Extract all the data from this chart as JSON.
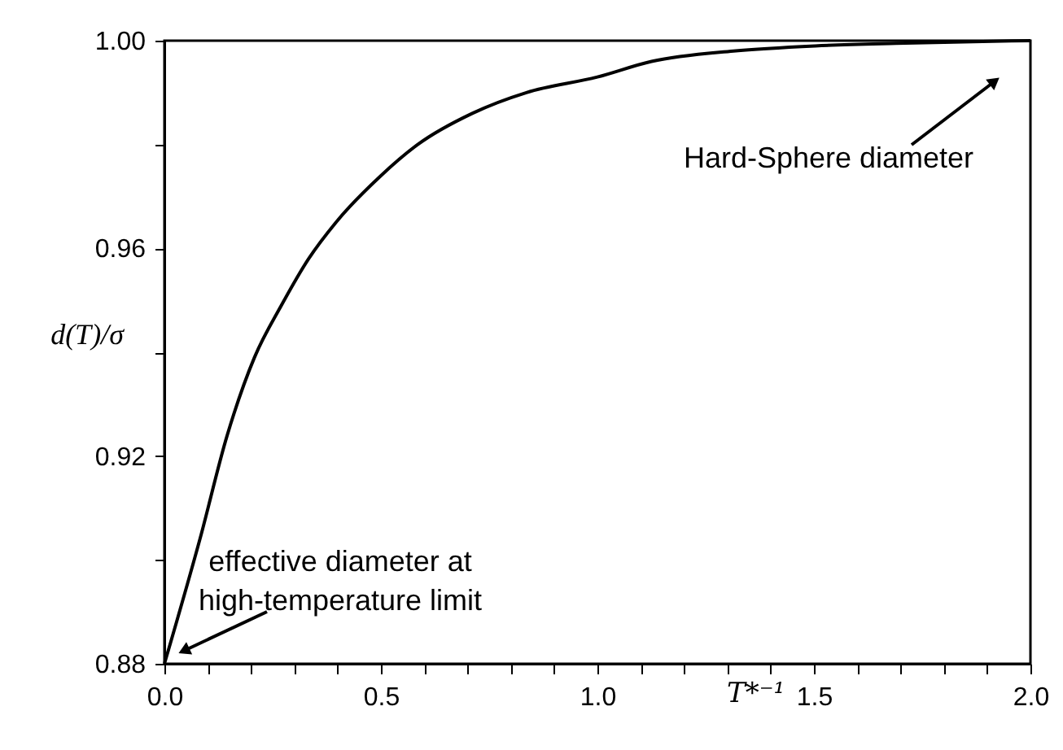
{
  "chart_data": {
    "type": "line",
    "xlabel": "T*⁻¹",
    "ylabel": "d(T)/σ",
    "x": [
      0,
      0.082,
      0.145,
      0.208,
      0.27,
      0.333,
      0.396,
      0.5,
      0.585,
      0.711,
      0.836,
      1.0,
      1.125,
      1.314,
      1.503,
      1.69,
      2.0
    ],
    "series": [
      {
        "color": "#000000",
        "values": [
          0.88,
          0.904,
          0.924,
          0.939,
          0.949,
          0.958,
          0.965,
          0.974,
          0.98,
          0.986,
          0.99,
          0.993,
          0.996,
          0.998,
          0.999,
          0.9995,
          1.0
        ]
      }
    ],
    "xlim": [
      0,
      2.0
    ],
    "xticks": [
      {
        "value": 0,
        "label": "0.0"
      },
      {
        "value": 0.1,
        "label": null
      },
      {
        "value": 0.2,
        "label": null
      },
      {
        "value": 0.3,
        "label": null
      },
      {
        "value": 0.4,
        "label": null
      },
      0.5,
      {
        "value": 0.6,
        "label": null
      },
      {
        "value": 0.7,
        "label": null
      },
      {
        "value": 0.8,
        "label": null
      },
      {
        "value": 0.9,
        "label": null
      },
      {
        "value": 1.0,
        "label": "1.0"
      },
      {
        "value": 1.1,
        "label": null
      },
      {
        "value": 1.2,
        "label": null
      },
      {
        "value": 1.3,
        "label": null
      },
      {
        "value": 1.4,
        "label": null
      },
      1.5,
      {
        "value": 1.6,
        "label": null
      },
      {
        "value": 1.7,
        "label": null
      },
      {
        "value": 1.8,
        "label": null
      },
      {
        "value": 1.9,
        "label": null
      },
      {
        "value": 2.0,
        "label": "2.0"
      }
    ],
    "ylim": [
      0.88,
      1.0
    ],
    "yticks": [
      0.88,
      {
        "value": 0.9,
        "label": null
      },
      0.92,
      {
        "value": 0.94,
        "label": null
      },
      0.96,
      {
        "value": 0.98,
        "label": null
      },
      {
        "value": 1.0,
        "label": "1.00"
      }
    ],
    "annotations": [
      "effective diameter at\nhigh-temperature limit",
      "Hard-Sphere diameter"
    ],
    "grid": false,
    "marker": "none",
    "line_style": "solid"
  }
}
